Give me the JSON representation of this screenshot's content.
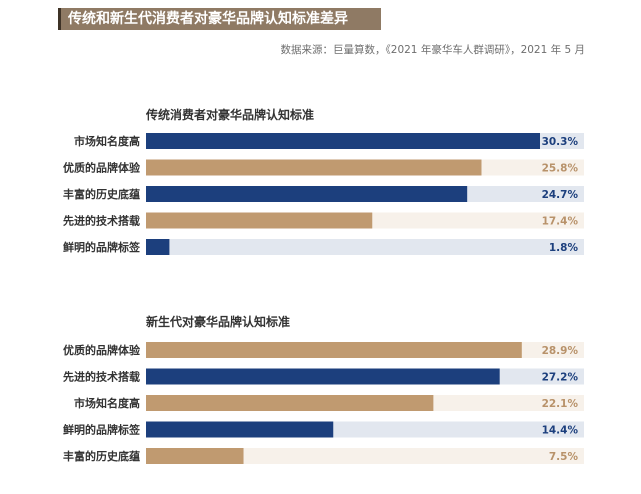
{
  "header": {
    "title": "传统和新生代消费者对豪华品牌认知标准差异",
    "source": "数据来源：巨量算数，《2021 年豪华车人群调研》，2021 年 5 月"
  },
  "colors": {
    "navy": "#1c3f7d",
    "tan": "#c09a70",
    "navy_track": "#e2e7ef",
    "tan_track": "#f7f1ea",
    "navy_value": "#1c3f7d",
    "tan_value": "#b8926a"
  },
  "chart_data": [
    {
      "type": "bar",
      "orientation": "horizontal",
      "title": "传统消费者对豪华品牌认知标准",
      "categories": [
        "市场知名度高",
        "优质的品牌体验",
        "丰富的历史底蕴",
        "先进的技术搭载",
        "鲜明的品牌标签"
      ],
      "values": [
        30.3,
        25.8,
        24.7,
        17.4,
        1.8
      ],
      "value_labels": [
        "30.3%",
        "25.8%",
        "24.7%",
        "17.4%",
        "1.8%"
      ],
      "bar_colors": [
        "navy",
        "tan",
        "navy",
        "tan",
        "navy"
      ],
      "xlim": [
        0,
        40
      ]
    },
    {
      "type": "bar",
      "orientation": "horizontal",
      "title": "新生代对豪华品牌认知标准",
      "categories": [
        "优质的品牌体验",
        "先进的技术搭载",
        "市场知名度高",
        "鲜明的品牌标签",
        "丰富的历史底蕴"
      ],
      "values": [
        28.9,
        27.2,
        22.1,
        14.4,
        7.5
      ],
      "value_labels": [
        "28.9%",
        "27.2%",
        "22.1%",
        "14.4%",
        "7.5%"
      ],
      "bar_colors": [
        "tan",
        "navy",
        "tan",
        "navy",
        "tan"
      ],
      "xlim": [
        0,
        40
      ]
    }
  ]
}
